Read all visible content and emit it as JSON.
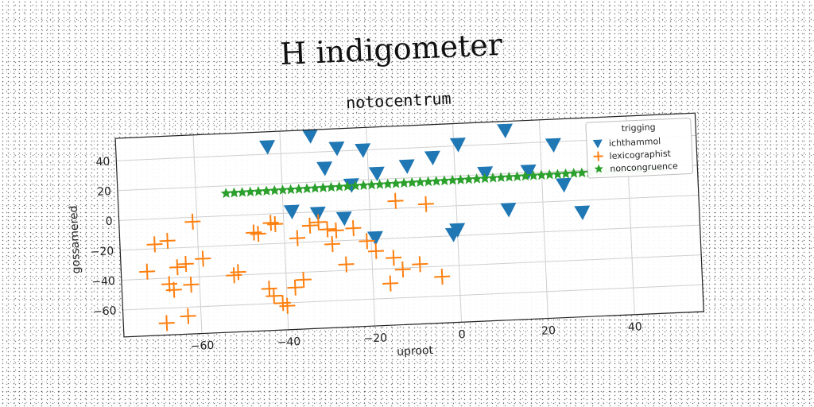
{
  "page": {
    "title": "H indigometer"
  },
  "colors": {
    "ichthammol": "#1f77b4",
    "lexicographist": "#ff7f0e",
    "noncongruence": "#2ca02c"
  },
  "chart_data": {
    "type": "scatter",
    "title": "notocentrum",
    "xlabel": "uproot",
    "ylabel": "gossamered",
    "xlim": [
      -78,
      56
    ],
    "ylim": [
      -78,
      55
    ],
    "xticks": [
      -60,
      -40,
      -20,
      0,
      20,
      40
    ],
    "yticks": [
      -60,
      -40,
      -20,
      0,
      20,
      40
    ],
    "grid": true,
    "legend": {
      "title": "trigging",
      "placement": "top-right"
    },
    "series": [
      {
        "name": "ichthammol",
        "marker": "triangle-down",
        "x": [
          -43,
          -33,
          -27,
          -21,
          -30,
          -24,
          -18,
          -11,
          -5,
          1,
          12,
          23,
          7,
          17,
          25,
          29,
          -38,
          -32,
          -26,
          -19,
          0,
          12,
          -1
        ],
        "y": [
          45,
          51,
          42,
          40,
          29,
          17,
          24,
          28,
          33,
          41,
          49,
          38,
          21,
          21,
          11,
          -8,
          1,
          -1,
          -5,
          -19,
          -16,
          -4,
          -19
        ]
      },
      {
        "name": "lexicographist",
        "marker": "plus",
        "x": [
          -70,
          -67,
          -61,
          -59,
          -63,
          -65,
          -67,
          -72,
          -66,
          -62,
          -68,
          -63,
          -52,
          -51,
          -47,
          -46,
          -42,
          -43,
          -37,
          -34,
          -32,
          -30,
          -28,
          -24,
          -29,
          -26,
          -21,
          -19,
          -15,
          -13,
          -9,
          -4,
          -36,
          -38,
          -44,
          -43,
          -41,
          -40,
          -16,
          -14,
          -7
        ],
        "y": [
          -17,
          -15,
          -3,
          -28,
          -31,
          -33,
          -44,
          -35,
          -48,
          -45,
          -70,
          -66,
          -40,
          -38,
          -12,
          -13,
          -7,
          -6,
          -17,
          -9,
          -7,
          -12,
          -13,
          -12,
          -22,
          -36,
          -21,
          -28,
          -33,
          -41,
          -38,
          -47,
          -45,
          -50,
          -50,
          -55,
          -60,
          -62,
          -50,
          5,
          2
        ]
      },
      {
        "name": "noncongruence",
        "marker": "star",
        "x_range": [
          -53,
          48
        ],
        "y_range": [
          15,
          19
        ],
        "count": 55
      }
    ]
  }
}
